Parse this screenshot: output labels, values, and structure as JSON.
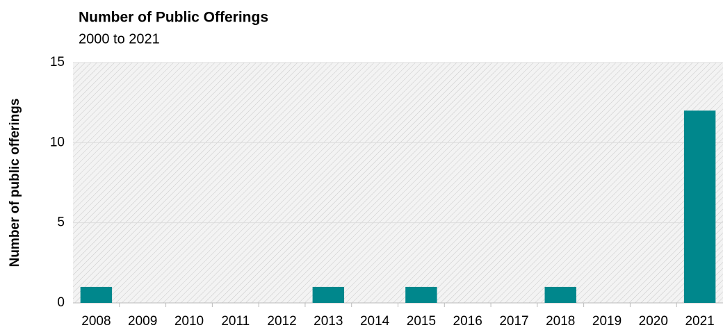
{
  "chart_data": {
    "type": "bar",
    "title": "Number of Public Offerings",
    "subtitle": "2000 to 2021",
    "y_label": "Number of public offerings",
    "categories": [
      "2008",
      "2009",
      "2010",
      "2011",
      "2012",
      "2013",
      "2014",
      "2015",
      "2016",
      "2017",
      "2018",
      "2019",
      "2020",
      "2021"
    ],
    "values": [
      1,
      0,
      0,
      0,
      0,
      1,
      0,
      1,
      0,
      0,
      1,
      0,
      0,
      12
    ],
    "color": "#00878c",
    "ylim": [
      0,
      15
    ],
    "yticks": [
      0,
      5,
      10,
      15
    ],
    "grid": true
  }
}
